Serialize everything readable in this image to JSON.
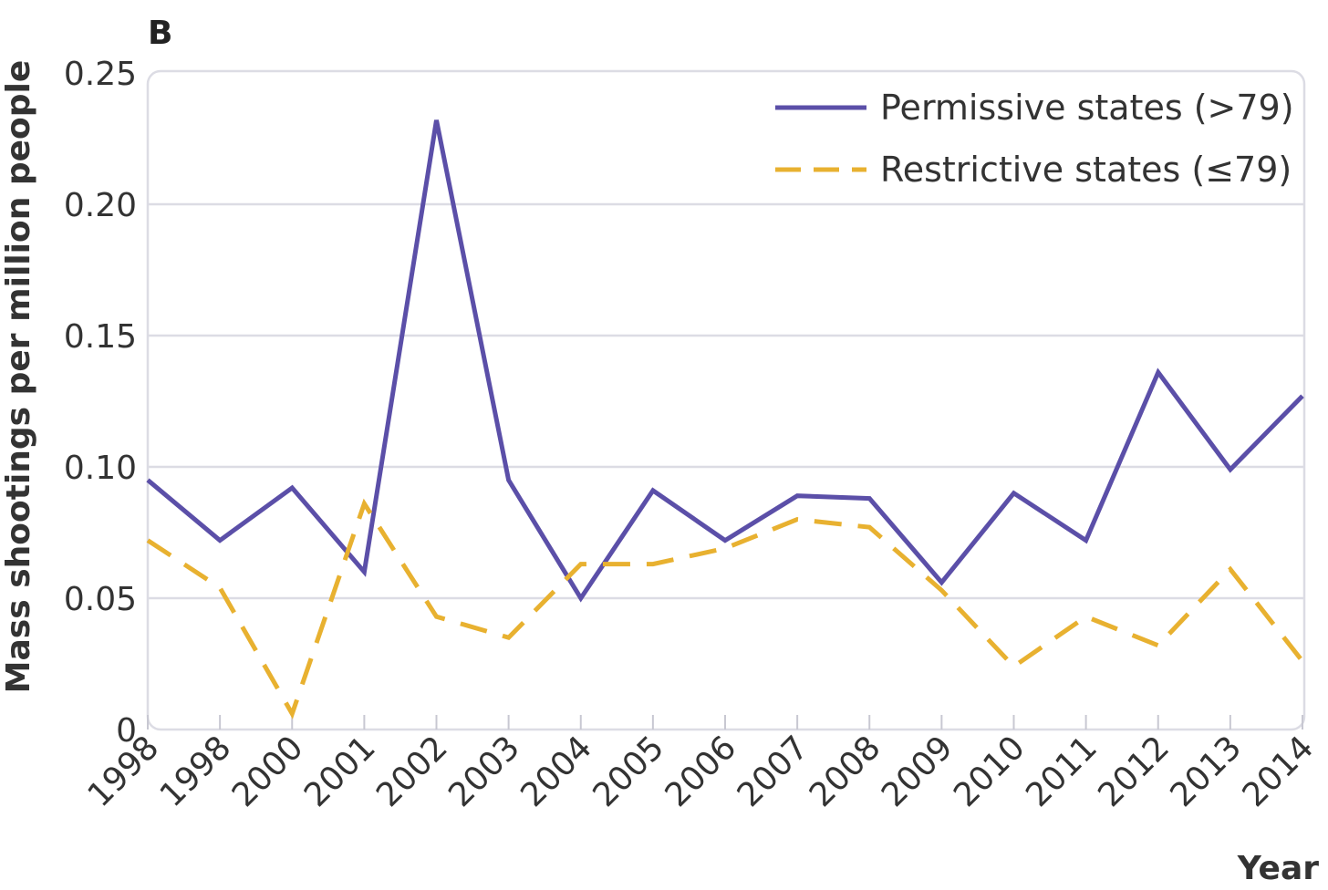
{
  "panel_label": "B",
  "chart_data": {
    "type": "line",
    "title": "",
    "xlabel": "Year",
    "ylabel": "Mass shootings per million people",
    "ylim": [
      0,
      0.25
    ],
    "yticks": [
      0,
      0.05,
      0.1,
      0.15,
      0.2,
      0.25
    ],
    "ytick_labels": [
      "0",
      "0.05",
      "0.10",
      "0.15",
      "0.20",
      "0.25"
    ],
    "categories": [
      "1998",
      "1998",
      "2000",
      "2001",
      "2002",
      "2003",
      "2004",
      "2005",
      "2006",
      "2007",
      "2008",
      "2009",
      "2010",
      "2011",
      "2012",
      "2013",
      "2014"
    ],
    "grid": true,
    "legend_position": "top-right",
    "series": [
      {
        "name": "Permissive states (>79)",
        "color": "#5b4fa8",
        "style": "solid",
        "values": [
          0.095,
          0.072,
          0.092,
          0.06,
          0.232,
          0.095,
          0.05,
          0.091,
          0.072,
          0.089,
          0.088,
          0.056,
          0.09,
          0.072,
          0.136,
          0.099,
          0.127
        ]
      },
      {
        "name": "Restrictive states (≤79)",
        "color": "#e8b130",
        "style": "dashed",
        "values": [
          0.072,
          0.054,
          0.006,
          0.086,
          0.043,
          0.035,
          0.063,
          0.063,
          0.069,
          0.08,
          0.077,
          0.053,
          0.024,
          0.043,
          0.032,
          0.061,
          0.026
        ]
      }
    ]
  }
}
